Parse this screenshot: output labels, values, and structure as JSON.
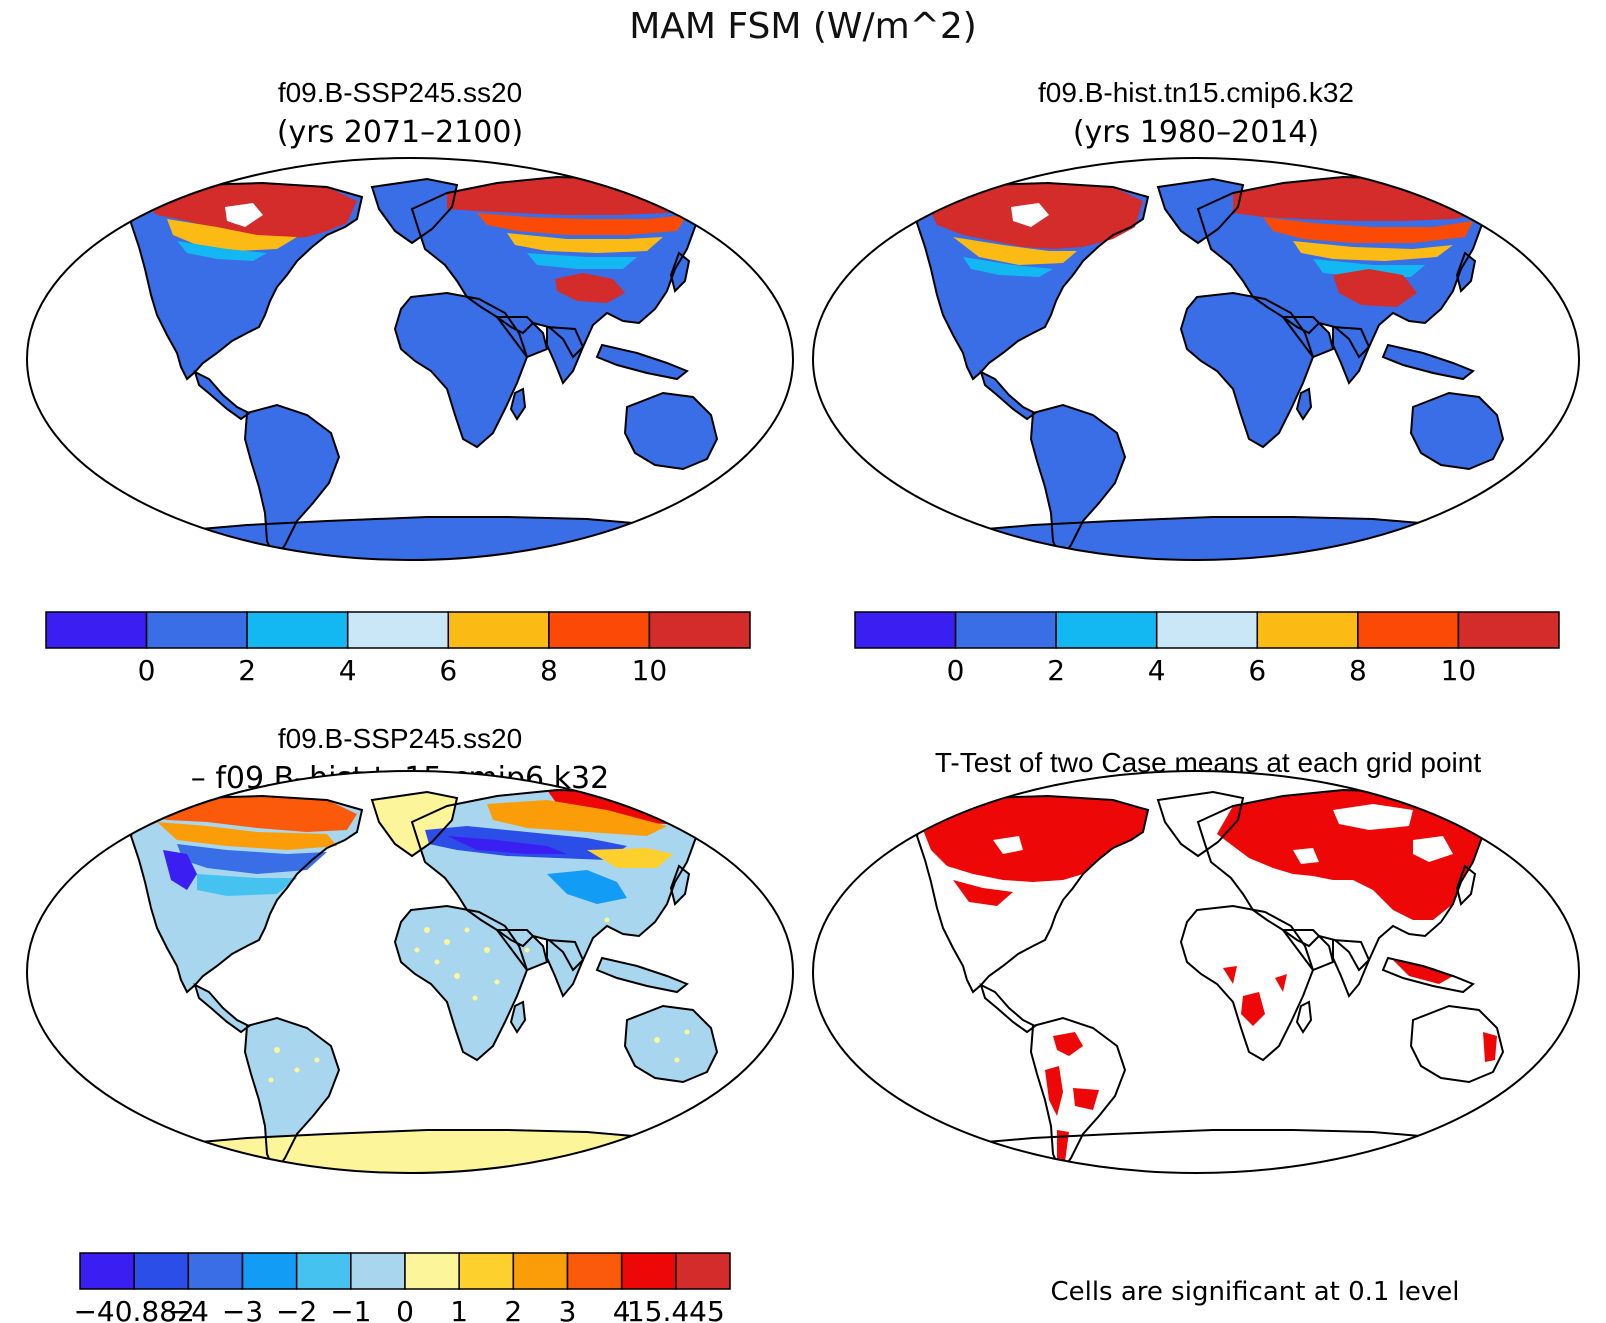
{
  "main_title": "MAM FSM (W/m^2)",
  "panels": [
    {
      "id": "case",
      "title": "f09.B-SSP245.ss20",
      "subtitle": "(yrs 2071–2100)",
      "colorbar": {
        "colors": [
          "#3b1ff2",
          "#3a6ee6",
          "#13b7f2",
          "#c9e7f7",
          "#fcbb14",
          "#fb4a05",
          "#d42b2b"
        ],
        "labels": [
          "0",
          "2",
          "4",
          "6",
          "8",
          "10"
        ]
      },
      "map": {
        "ocean_color": "#ffffff",
        "land_base_color": "#3a6ee6"
      }
    },
    {
      "id": "control",
      "title": "f09.B-hist.tn15.cmip6.k32",
      "subtitle": "(yrs 1980–2014)",
      "colorbar": {
        "colors": [
          "#3b1ff2",
          "#3a6ee6",
          "#13b7f2",
          "#c9e7f7",
          "#fcbb14",
          "#fb4a05",
          "#d42b2b"
        ],
        "labels": [
          "0",
          "2",
          "4",
          "6",
          "8",
          "10"
        ]
      },
      "map": {
        "ocean_color": "#ffffff",
        "land_base_color": "#3a6ee6"
      }
    },
    {
      "id": "difference",
      "title": "f09.B-SSP245.ss20",
      "subtitle": "– f09.B–hist.tn15.cmip6.k32",
      "colorbar": {
        "colors": [
          "#3b1ff2",
          "#2b4de8",
          "#3a6ee6",
          "#129cf5",
          "#46c2f0",
          "#a8d6ee",
          "#fdf59a",
          "#fdd02d",
          "#fb9d09",
          "#fb5a0a",
          "#ee0707",
          "#d42b2b"
        ],
        "labels": [
          "−40.882",
          "−4",
          "−3",
          "−2",
          "−1",
          "0",
          "1",
          "2",
          "3",
          "4",
          "15.445"
        ]
      },
      "map": {
        "ocean_color": "#ffffff",
        "land_base_color": "#a8d6ee"
      }
    },
    {
      "id": "ttest",
      "title": "T-Test of two Case means at each grid point",
      "footer": "Cells are significant at 0.1 level",
      "map": {
        "ocean_color": "#ffffff",
        "land_base_color": "#ffffff",
        "significant_color": "#ee0707"
      }
    }
  ]
}
